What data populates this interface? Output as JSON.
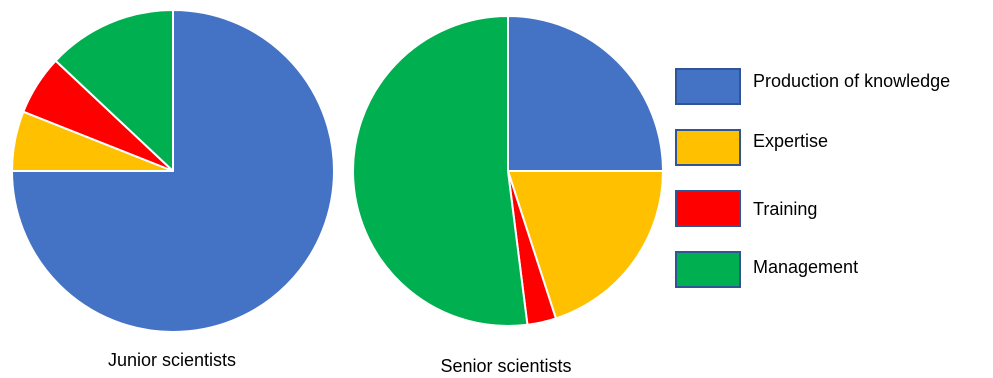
{
  "chart_data": {
    "type": "pie",
    "categories": [
      "Production of knowledge",
      "Expertise",
      "Training",
      "Management"
    ],
    "colors": [
      "#4472C4",
      "#FFC000",
      "#FF0000",
      "#00B050"
    ],
    "series": [
      {
        "name": "Junior scientists",
        "values": [
          75,
          6,
          6,
          13
        ]
      },
      {
        "name": "Senior scientists",
        "values": [
          25,
          20,
          3,
          52
        ]
      }
    ],
    "legend_position": "right"
  }
}
